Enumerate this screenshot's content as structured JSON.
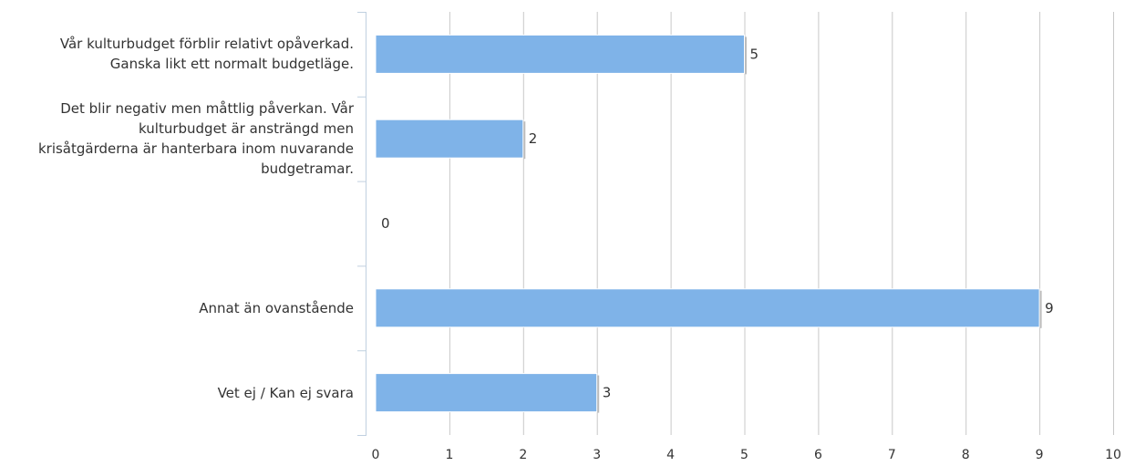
{
  "chart_data": {
    "type": "bar",
    "orientation": "horizontal",
    "categories": [
      "Vår kulturbudget förblir relativt opåverkad.\nGanska likt ett normalt budgetläge.",
      "Det blir negativ men måttlig påverkan. Vår\nkulturbudget är ansträngd men\nkrisåtgärderna är hanterbara inom nuvarande\nbudgetramar.",
      "",
      "Annat än ovanstående",
      "Vet ej / Kan ej svara"
    ],
    "values": [
      5,
      2,
      0,
      9,
      3
    ],
    "data_labels": [
      "5",
      "2",
      "0",
      "9",
      "3"
    ],
    "xlim": [
      0,
      10
    ],
    "x_ticks": [
      "0",
      "1",
      "2",
      "3",
      "4",
      "5",
      "6",
      "7",
      "8",
      "9",
      "10"
    ],
    "title": "",
    "xlabel": "",
    "ylabel": "",
    "grid": "vertical",
    "legend": "none",
    "colors": {
      "bar": "#7fb3e8",
      "bar_edge": "#ffffff",
      "grid": "#c8c8c8",
      "axis": "#c0d0e0",
      "text": "#333333"
    }
  }
}
